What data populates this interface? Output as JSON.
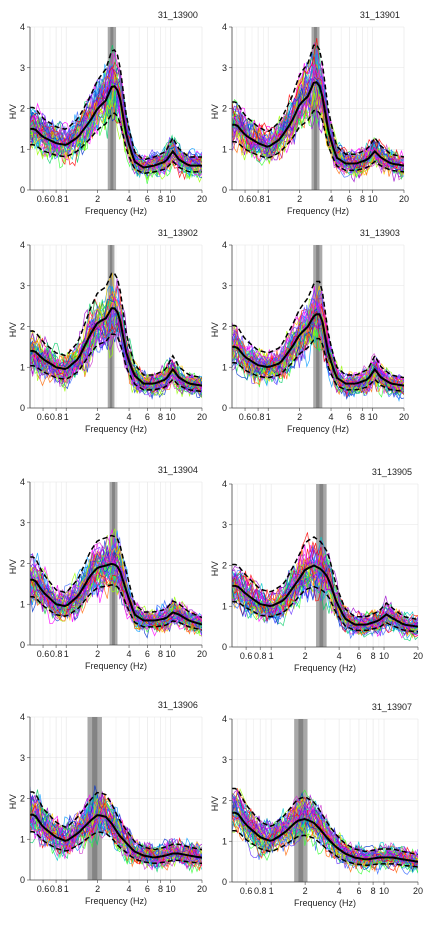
{
  "chart_data": [
    {
      "type": "line",
      "title": "31_13900",
      "xlabel": "Frequency (Hz)",
      "ylabel": "H/V",
      "x_scale": "log",
      "xlim": [
        0.45,
        20
      ],
      "ylim": [
        0,
        4
      ],
      "x_ticks": [
        "0.6",
        "0.8",
        "1",
        "2",
        "4",
        "6",
        "8",
        "10",
        "20"
      ],
      "y_ticks": [
        "0",
        "1",
        "2",
        "3",
        "4"
      ],
      "peak_band_hz": [
        2.5,
        3.0
      ],
      "grid": true,
      "mean_curve": {
        "x": [
          0.5,
          0.6,
          0.8,
          1.0,
          1.3,
          1.7,
          2.0,
          2.4,
          2.8,
          3.2,
          3.8,
          4.5,
          5.5,
          7,
          9,
          10.5,
          12,
          15,
          20
        ],
        "y": [
          1.5,
          1.3,
          1.15,
          1.1,
          1.3,
          1.7,
          2.0,
          2.2,
          2.6,
          2.4,
          1.3,
          0.7,
          0.55,
          0.6,
          0.7,
          0.95,
          0.75,
          0.6,
          0.6
        ]
      }
    },
    {
      "type": "line",
      "title": "31_13901",
      "xlabel": "Frequency (Hz)",
      "ylabel": "H/V",
      "x_scale": "log",
      "xlim": [
        0.45,
        20
      ],
      "ylim": [
        0,
        4
      ],
      "x_ticks": [
        "0.6",
        "0.8",
        "1",
        "2",
        "4",
        "6",
        "8",
        "10",
        "20"
      ],
      "y_ticks": [
        "0",
        "1",
        "2",
        "3",
        "4"
      ],
      "peak_band_hz": [
        2.6,
        3.1
      ],
      "grid": true,
      "mean_curve": {
        "x": [
          0.5,
          0.6,
          0.8,
          1.0,
          1.3,
          1.7,
          2.0,
          2.4,
          2.8,
          3.2,
          3.8,
          4.5,
          5.5,
          7,
          9,
          10.5,
          12,
          15,
          20
        ],
        "y": [
          1.6,
          1.35,
          1.15,
          1.05,
          1.25,
          1.7,
          2.1,
          2.3,
          2.7,
          2.5,
          1.4,
          0.8,
          0.65,
          0.65,
          0.75,
          0.95,
          0.8,
          0.65,
          0.6
        ]
      }
    },
    {
      "type": "line",
      "title": "31_13902",
      "xlabel": "Frequency (Hz)",
      "ylabel": "H/V",
      "x_scale": "log",
      "xlim": [
        0.45,
        20
      ],
      "ylim": [
        0,
        4
      ],
      "x_ticks": [
        "0.6",
        "0.8",
        "1",
        "2",
        "4",
        "6",
        "8",
        "10",
        "20"
      ],
      "y_ticks": [
        "0",
        "1",
        "2",
        "3",
        "4"
      ],
      "peak_band_hz": [
        2.5,
        2.9
      ],
      "grid": true,
      "mean_curve": {
        "x": [
          0.5,
          0.6,
          0.8,
          1.0,
          1.3,
          1.7,
          2.0,
          2.4,
          2.8,
          3.2,
          3.8,
          4.5,
          5.5,
          7,
          9,
          10.5,
          12,
          15,
          20
        ],
        "y": [
          1.4,
          1.2,
          1.0,
          0.95,
          1.2,
          1.8,
          2.1,
          2.2,
          2.5,
          2.3,
          1.3,
          0.8,
          0.6,
          0.6,
          0.7,
          0.95,
          0.75,
          0.6,
          0.55
        ]
      }
    },
    {
      "type": "line",
      "title": "31_13903",
      "xlabel": "Frequency (Hz)",
      "ylabel": "H/V",
      "x_scale": "log",
      "xlim": [
        0.45,
        20
      ],
      "ylim": [
        0,
        4
      ],
      "x_ticks": [
        "0.6",
        "0.8",
        "1",
        "2",
        "4",
        "6",
        "8",
        "10",
        "20"
      ],
      "y_ticks": [
        "0",
        "1",
        "2",
        "3",
        "4"
      ],
      "peak_band_hz": [
        2.7,
        3.3
      ],
      "grid": true,
      "mean_curve": {
        "x": [
          0.5,
          0.6,
          0.8,
          1.0,
          1.3,
          1.7,
          2.0,
          2.4,
          2.8,
          3.2,
          3.8,
          4.5,
          5.5,
          7,
          9,
          10.5,
          12,
          15,
          20
        ],
        "y": [
          1.5,
          1.25,
          1.05,
          1.0,
          1.1,
          1.5,
          1.8,
          2.0,
          2.3,
          2.3,
          1.3,
          0.75,
          0.6,
          0.6,
          0.7,
          0.95,
          0.75,
          0.6,
          0.55
        ]
      }
    },
    {
      "type": "line",
      "title": "31_13904",
      "xlabel": "Frequency (Hz)",
      "ylabel": "H/V",
      "x_scale": "log",
      "xlim": [
        0.45,
        20
      ],
      "ylim": [
        0,
        4
      ],
      "x_ticks": [
        "0.6",
        "0.8",
        "1",
        "2",
        "4",
        "6",
        "8",
        "10",
        "20"
      ],
      "y_ticks": [
        "0",
        "1",
        "2",
        "3",
        "4"
      ],
      "peak_band_hz": [
        2.6,
        3.1
      ],
      "grid": true,
      "mean_curve": {
        "x": [
          0.5,
          0.6,
          0.8,
          1.0,
          1.3,
          1.7,
          2.0,
          2.4,
          2.8,
          3.2,
          3.8,
          4.5,
          5.5,
          7,
          9,
          10.5,
          12,
          15,
          20
        ],
        "y": [
          1.6,
          1.3,
          1.0,
          0.95,
          1.2,
          1.7,
          1.9,
          1.95,
          2.0,
          1.9,
          1.3,
          0.75,
          0.6,
          0.6,
          0.65,
          0.8,
          0.75,
          0.6,
          0.5
        ]
      }
    },
    {
      "type": "line",
      "title": "31_13905",
      "xlabel": "Frequency (Hz)",
      "ylabel": "H/V",
      "x_scale": "log",
      "xlim": [
        0.45,
        20
      ],
      "ylim": [
        0,
        4
      ],
      "x_ticks": [
        "0.6",
        "0.8",
        "1",
        "2",
        "4",
        "6",
        "8",
        "10",
        "20"
      ],
      "y_ticks": [
        "0",
        "1",
        "2",
        "3",
        "4"
      ],
      "peak_band_hz": [
        2.5,
        3.1
      ],
      "grid": true,
      "mean_curve": {
        "x": [
          0.5,
          0.6,
          0.8,
          1.0,
          1.3,
          1.7,
          2.0,
          2.4,
          2.8,
          3.2,
          3.8,
          4.5,
          5.5,
          7,
          9,
          10.5,
          12,
          15,
          20
        ],
        "y": [
          1.5,
          1.3,
          1.05,
          1.0,
          1.15,
          1.6,
          1.9,
          2.0,
          1.9,
          1.7,
          1.1,
          0.7,
          0.55,
          0.55,
          0.65,
          0.8,
          0.7,
          0.55,
          0.5
        ]
      }
    },
    {
      "type": "line",
      "title": "31_13906",
      "xlabel": "Frequency (Hz)",
      "ylabel": "H/V",
      "x_scale": "log",
      "xlim": [
        0.45,
        20
      ],
      "ylim": [
        0,
        4
      ],
      "x_ticks": [
        "0.6",
        "0.8",
        "1",
        "2",
        "4",
        "6",
        "8",
        "10",
        "20"
      ],
      "y_ticks": [
        "0",
        "1",
        "2",
        "3",
        "4"
      ],
      "peak_band_hz": [
        1.6,
        2.2
      ],
      "grid": true,
      "mean_curve": {
        "x": [
          0.5,
          0.6,
          0.8,
          1.0,
          1.3,
          1.7,
          2.0,
          2.4,
          2.8,
          3.2,
          3.8,
          4.5,
          5.5,
          7,
          9,
          10.5,
          12,
          15,
          20
        ],
        "y": [
          1.6,
          1.3,
          1.05,
          0.95,
          1.15,
          1.45,
          1.6,
          1.55,
          1.35,
          1.1,
          0.9,
          0.7,
          0.6,
          0.55,
          0.6,
          0.65,
          0.65,
          0.6,
          0.55
        ]
      }
    },
    {
      "type": "line",
      "title": "31_13907",
      "xlabel": "Frequency (Hz)",
      "ylabel": "H/V",
      "x_scale": "log",
      "xlim": [
        0.45,
        20
      ],
      "ylim": [
        0,
        4
      ],
      "x_ticks": [
        "0.6",
        "0.8",
        "1",
        "2",
        "4",
        "6",
        "8",
        "10",
        "20"
      ],
      "y_ticks": [
        "0",
        "1",
        "2",
        "3",
        "4"
      ],
      "peak_band_hz": [
        1.6,
        2.1
      ],
      "grid": true,
      "mean_curve": {
        "x": [
          0.5,
          0.6,
          0.8,
          1.0,
          1.3,
          1.7,
          2.0,
          2.4,
          2.8,
          3.2,
          3.8,
          4.5,
          5.5,
          7,
          9,
          10.5,
          12,
          15,
          20
        ],
        "y": [
          1.7,
          1.4,
          1.1,
          1.0,
          1.2,
          1.5,
          1.55,
          1.45,
          1.25,
          1.05,
          0.85,
          0.7,
          0.6,
          0.55,
          0.6,
          0.6,
          0.6,
          0.55,
          0.5
        ]
      }
    }
  ],
  "colors": {
    "mean_curve": "#000000",
    "std_curve": "#000000",
    "peak_band": "#9a9a9a",
    "peak_band_core": "#7a7a7a",
    "grid": "#e4e4e4",
    "window_palette": [
      "#ff00ff",
      "#cc33cc",
      "#9900cc",
      "#6633ff",
      "#3366ff",
      "#0099ff",
      "#00cccc",
      "#00cc66",
      "#33ff33",
      "#99ff00",
      "#ffcc00",
      "#ff6600",
      "#ff0000",
      "#0033cc"
    ]
  }
}
